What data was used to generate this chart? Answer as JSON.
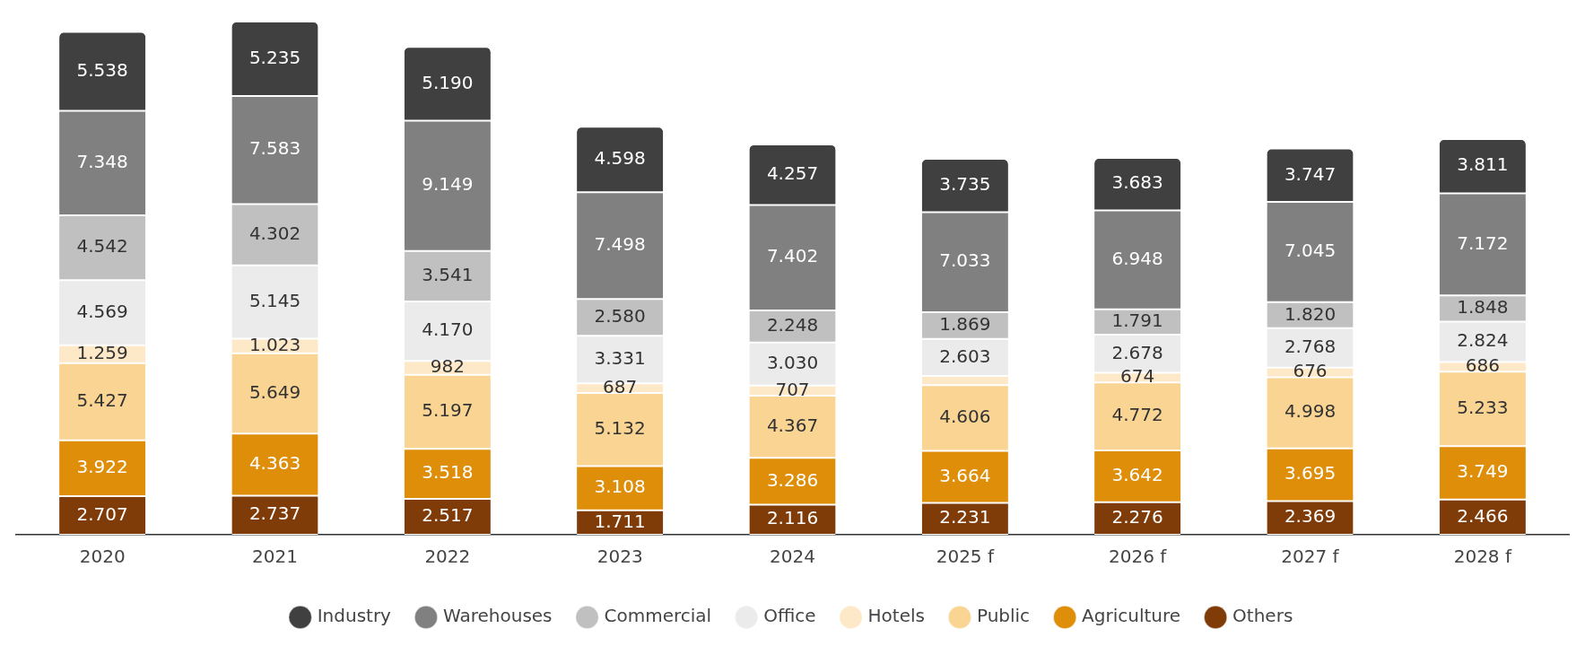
{
  "chart_data": {
    "type": "bar",
    "stacked": true,
    "legend": "bottom",
    "grid": false,
    "categories": [
      "2020",
      "2021",
      "2022",
      "2023",
      "2024",
      "2025 f",
      "2026 f",
      "2027 f",
      "2028 f"
    ],
    "series": [
      {
        "name": "Others",
        "color": "#7f3b08",
        "values": [
          2707,
          2737,
          2517,
          1711,
          2116,
          2231,
          2276,
          2369,
          2466
        ],
        "value_labels": [
          "2.707",
          "2.737",
          "2.517",
          "1.711",
          "2.116",
          "2.231",
          "2.276",
          "2.369",
          "2.466"
        ]
      },
      {
        "name": "Agriculture",
        "color": "#df8e0a",
        "values": [
          3922,
          4363,
          3518,
          3108,
          3286,
          3664,
          3642,
          3695,
          3749
        ],
        "value_labels": [
          "3.922",
          "4.363",
          "3.518",
          "3.108",
          "3.286",
          "3.664",
          "3.642",
          "3.695",
          "3.749"
        ]
      },
      {
        "name": "Public",
        "color": "#fad493",
        "values": [
          5427,
          5649,
          5197,
          5132,
          4367,
          4606,
          4772,
          4998,
          5233
        ],
        "value_labels": [
          "5.427",
          "5.649",
          "5.197",
          "5.132",
          "4.367",
          "4.606",
          "4.772",
          "4.998",
          "5.233"
        ]
      },
      {
        "name": "Hotels",
        "color": "#fde8c8",
        "values": [
          1259,
          1023,
          982,
          687,
          707,
          650,
          674,
          676,
          686
        ],
        "value_labels": [
          "1.259",
          "1.023",
          "982",
          "687",
          "707",
          null,
          "674",
          "676",
          "686"
        ]
      },
      {
        "name": "Office",
        "color": "#ebebeb",
        "values": [
          4569,
          5145,
          4170,
          3331,
          3030,
          2603,
          2678,
          2768,
          2824
        ],
        "value_labels": [
          "4.569",
          "5.145",
          "4.170",
          "3.331",
          "3.030",
          "2.603",
          "2.678",
          "2.768",
          "2.824"
        ]
      },
      {
        "name": "Commercial",
        "color": "#c0c0c0",
        "values": [
          4542,
          4302,
          3541,
          2580,
          2248,
          1869,
          1791,
          1820,
          1848
        ],
        "value_labels": [
          "4.542",
          "4.302",
          "3.541",
          "2.580",
          "2.248",
          "1.869",
          "1.791",
          "1.820",
          "1.848"
        ]
      },
      {
        "name": "Warehouses",
        "color": "#808080",
        "values": [
          7348,
          7583,
          9149,
          7498,
          7402,
          7033,
          6948,
          7045,
          7172
        ],
        "value_labels": [
          "7.348",
          "7.583",
          "9.149",
          "7.498",
          "7.402",
          "7.033",
          "6.948",
          "7.045",
          "7.172"
        ]
      },
      {
        "name": "Industry",
        "color": "#404040",
        "values": [
          5538,
          5235,
          5190,
          4598,
          4257,
          3735,
          3683,
          3747,
          3811
        ],
        "value_labels": [
          "5.538",
          "5.235",
          "5.190",
          "4.598",
          "4.257",
          "3.735",
          "3.683",
          "3.747",
          "3.811"
        ]
      }
    ]
  }
}
